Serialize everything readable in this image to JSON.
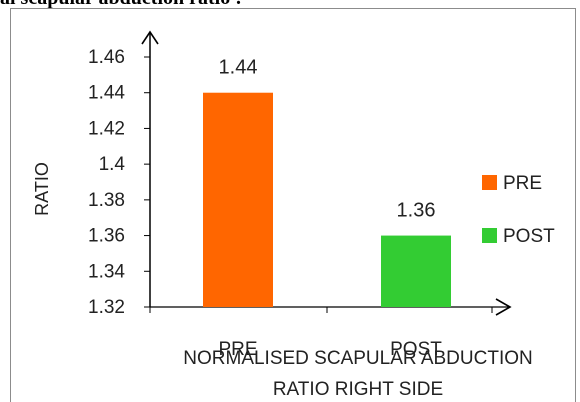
{
  "header": {
    "partial_title": "al scapular abduction ratio :"
  },
  "chart_data": {
    "type": "bar",
    "categories": [
      "PRE",
      "POST"
    ],
    "values": [
      1.44,
      1.36
    ],
    "data_labels": [
      "1.44",
      "1.36"
    ],
    "colors": [
      "#ff6600",
      "#33cc33"
    ],
    "ylabel": "RATIO",
    "xlabel": [
      "NORMALISED SCAPULAR ABDUCTION",
      "RATIO RIGHT SIDE"
    ],
    "ylim": [
      1.32,
      1.46
    ],
    "yticks": [
      "1.32",
      "1.34",
      "1.36",
      "1.38",
      "1.4",
      "1.42",
      "1.44",
      "1.46"
    ],
    "legend": {
      "position": "right",
      "entries": [
        "PRE",
        "POST"
      ]
    },
    "grid": false
  }
}
